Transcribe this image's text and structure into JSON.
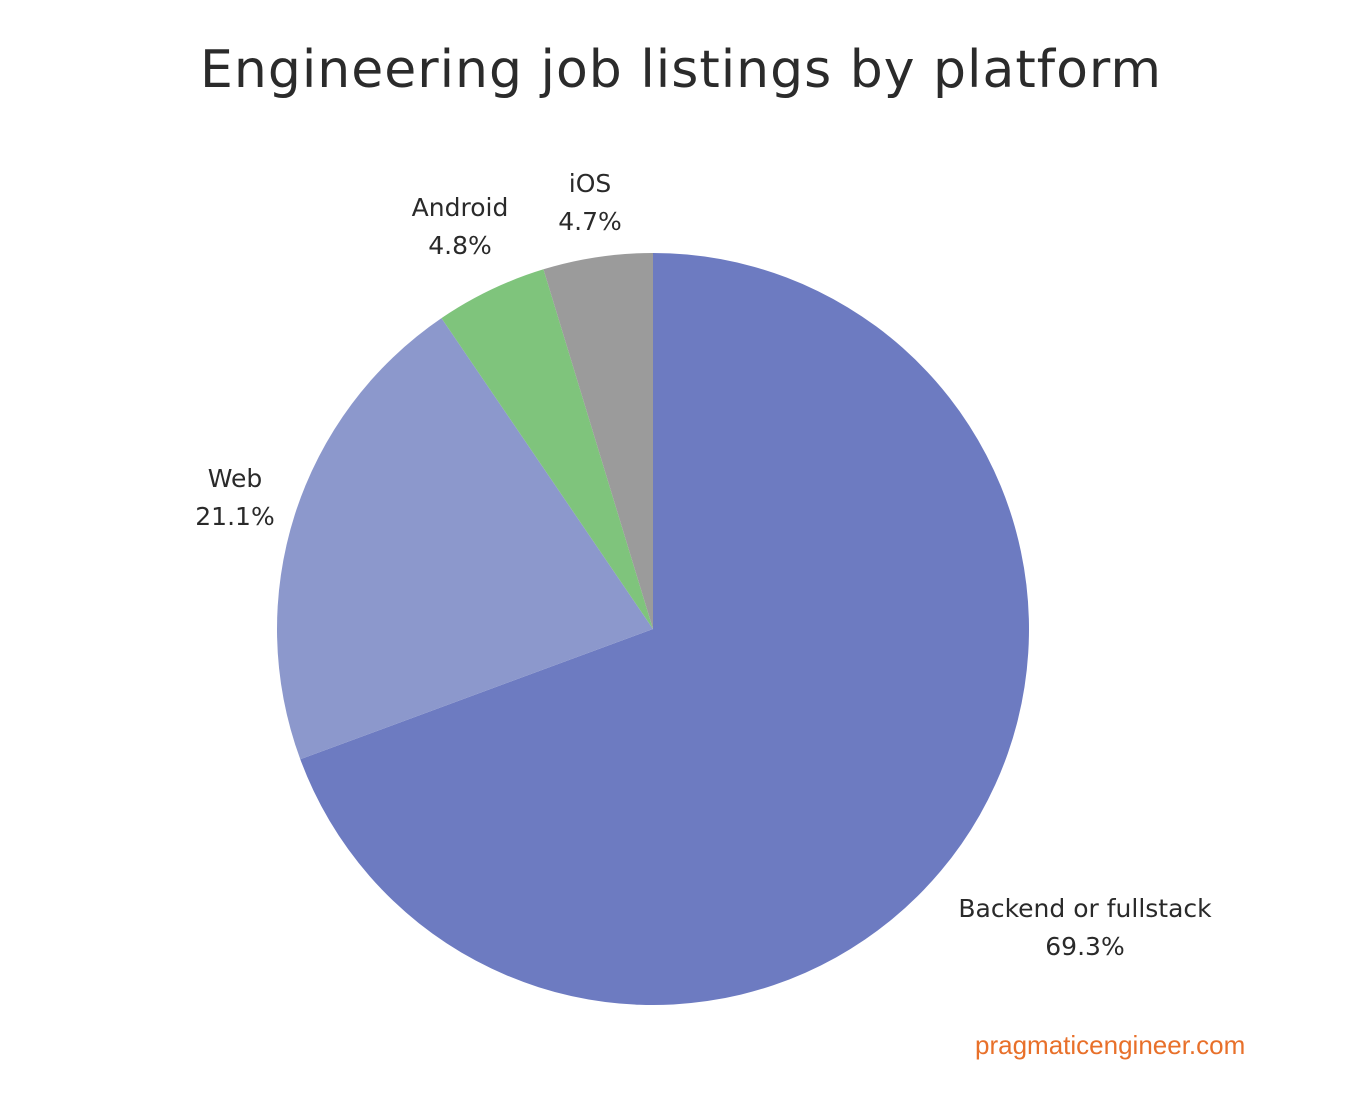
{
  "chart_data": {
    "type": "pie",
    "title": "Engineering job listings by platform",
    "categories": [
      "Backend or fullstack",
      "Web",
      "Android",
      "iOS"
    ],
    "values": [
      69.3,
      21.1,
      4.8,
      4.7
    ],
    "labels": [
      "69.3%",
      "21.1%",
      "4.8%",
      "4.7%"
    ],
    "colors": [
      "#6d7bc1",
      "#8c98cc",
      "#7fc47c",
      "#9b9b9b"
    ],
    "start_angle": "12 o'clock, clockwise",
    "legend": "none (direct labels)"
  },
  "credit": "pragmaticengineer.com"
}
